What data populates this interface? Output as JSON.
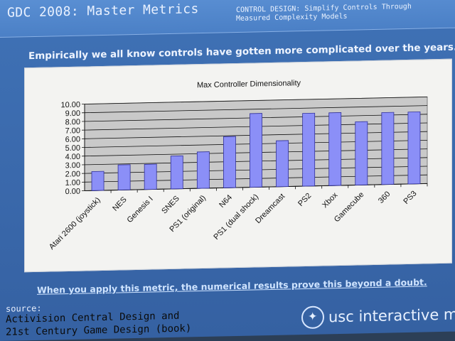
{
  "header": {
    "brand": "GDC 2008: Master Metrics",
    "subtitle": "CONTROL DESIGN: Simplify Controls Through Measured Complexity Models"
  },
  "headline": "Empirically we all know controls have gotten more complicated over the years.",
  "footer": {
    "claim": "When you apply this metric, the numerical results prove this beyond a doubt.",
    "source_label": "source:",
    "source_line1": "Activision Central Design and",
    "source_line2": "21st Century Game Design (book)",
    "logo_text": "usc interactive med"
  },
  "chart_data": {
    "type": "bar",
    "title": "Max Controller Dimensionality",
    "xlabel": "",
    "ylabel": "",
    "ylim": [
      0,
      10
    ],
    "yticks": [
      "0.00",
      "1.00",
      "2.00",
      "3.00",
      "4.00",
      "5.00",
      "6.00",
      "7.00",
      "8.00",
      "9.00",
      "10.00"
    ],
    "categories": [
      "Atari 2600 (joystick)",
      "NES",
      "Genesis I",
      "SNES",
      "PS1 (original)",
      "N64",
      "PS1 (dual shock)",
      "Dreamcast",
      "PS2",
      "Xbox",
      "Gamecube",
      "360",
      "PS3"
    ],
    "values": [
      2.2,
      2.9,
      2.9,
      3.8,
      4.2,
      5.9,
      8.5,
      5.3,
      8.4,
      8.4,
      7.3,
      8.3,
      8.3
    ],
    "grid": true,
    "colors": {
      "bar": "#8b8ff7",
      "bar_stroke": "#30309a",
      "plot_bg": "#c9c9c9"
    }
  }
}
